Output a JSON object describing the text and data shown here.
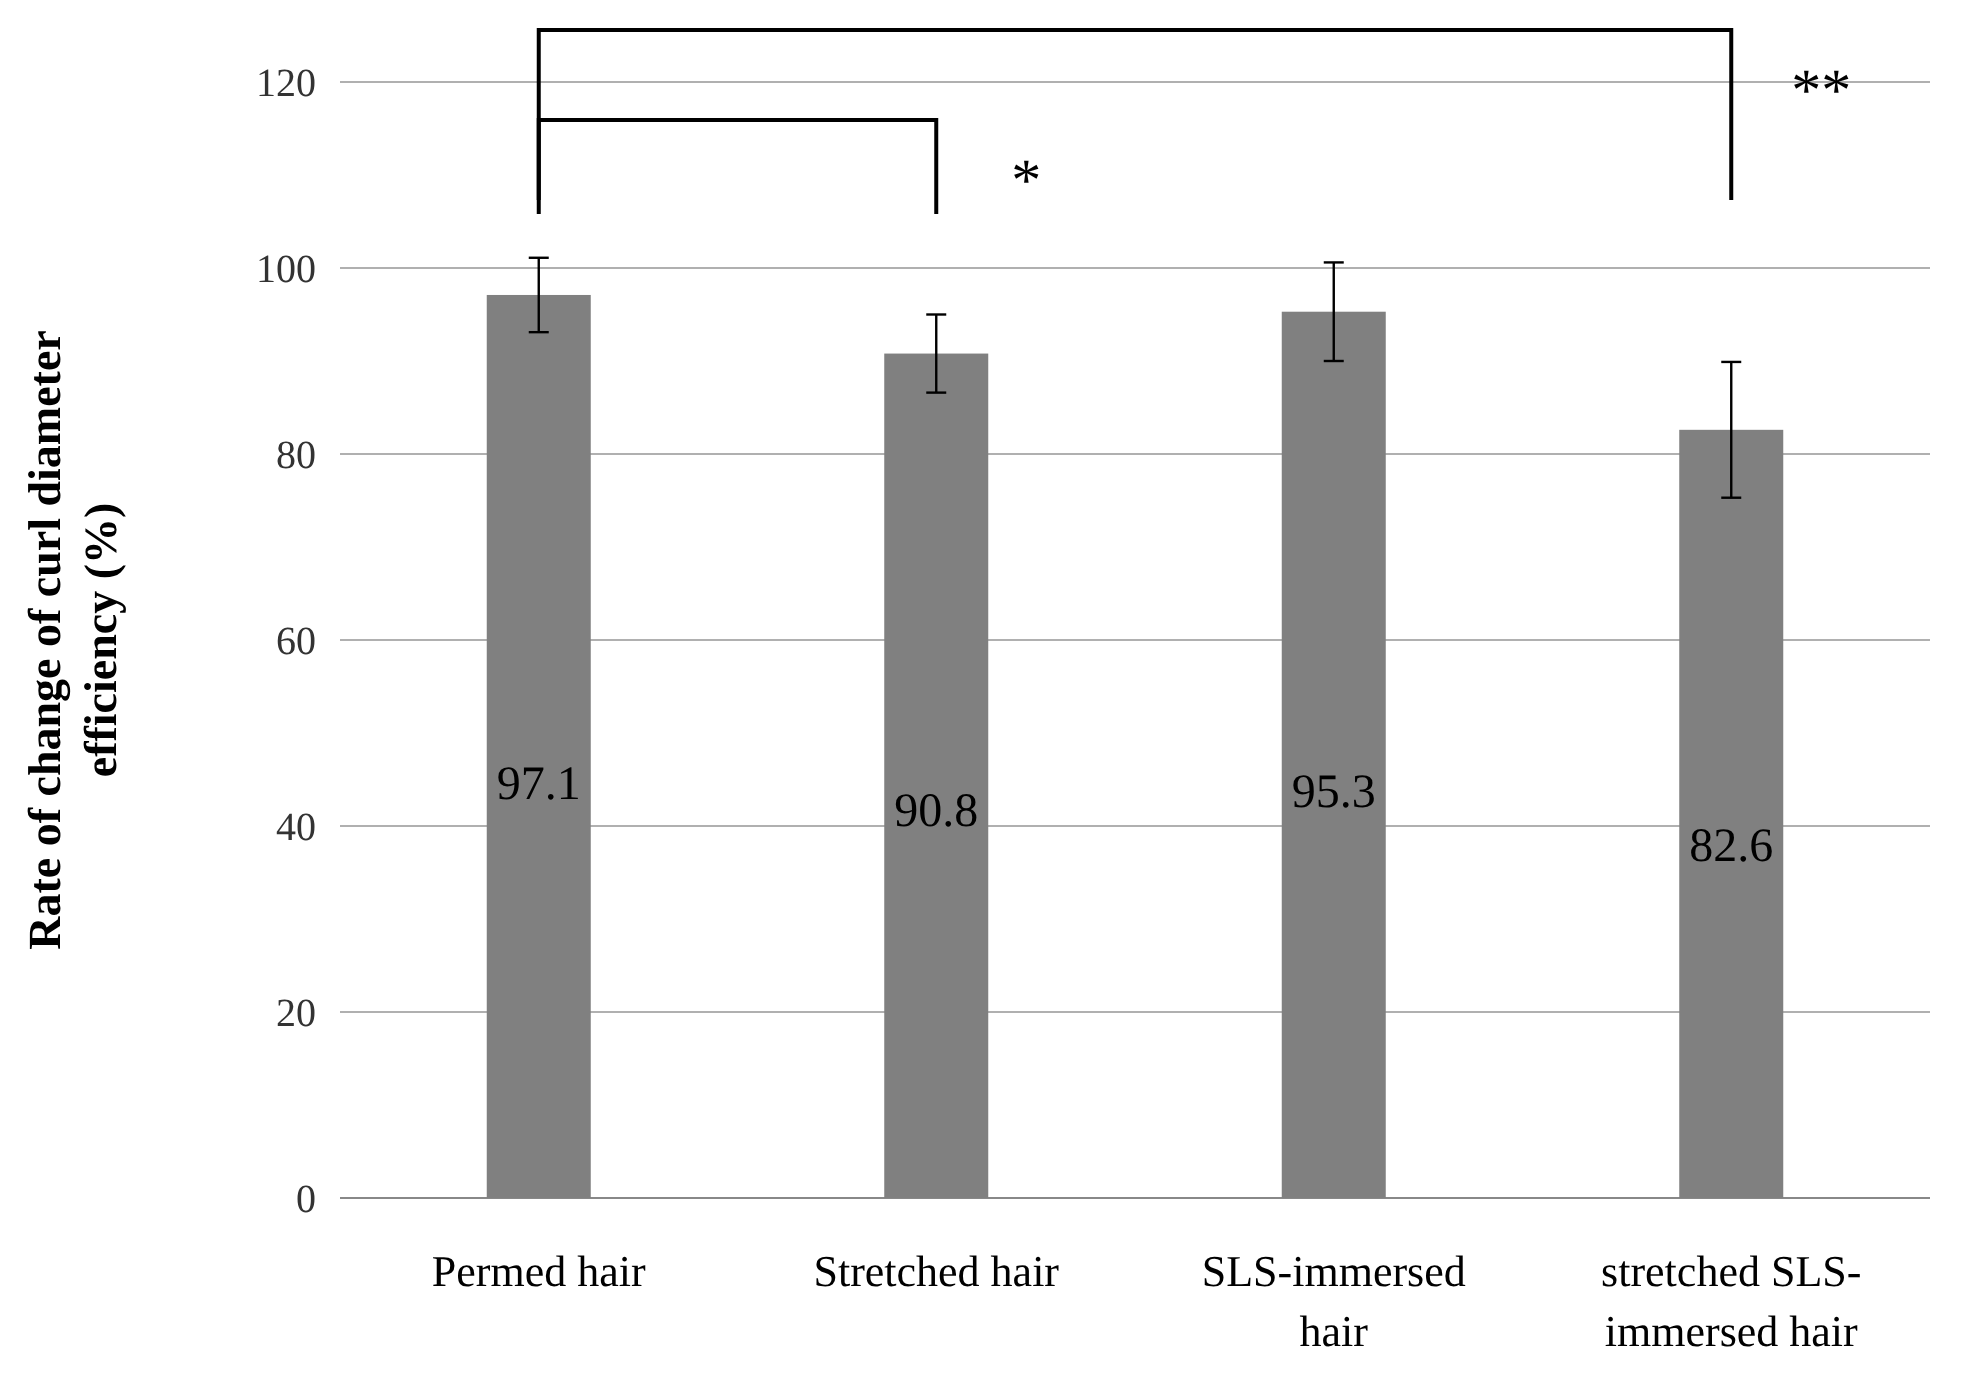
{
  "chart_data": {
    "type": "bar",
    "ylabel": "Rate of change of curl diameter efficiency (%)",
    "categories": [
      "Permed hair",
      "Stretched hair",
      "SLS-immersed hair",
      "stretched SLS-immersed hair"
    ],
    "values": [
      97.1,
      90.8,
      95.3,
      82.6
    ],
    "color": "#808080",
    "errors": [
      4.0,
      4.2,
      5.3,
      7.3
    ],
    "ylim": [
      0,
      120
    ],
    "yticks": [
      0,
      20,
      40,
      60,
      80,
      100,
      120
    ],
    "grid": "y",
    "data_labels": true,
    "annotations": [
      "*",
      "**"
    ]
  }
}
